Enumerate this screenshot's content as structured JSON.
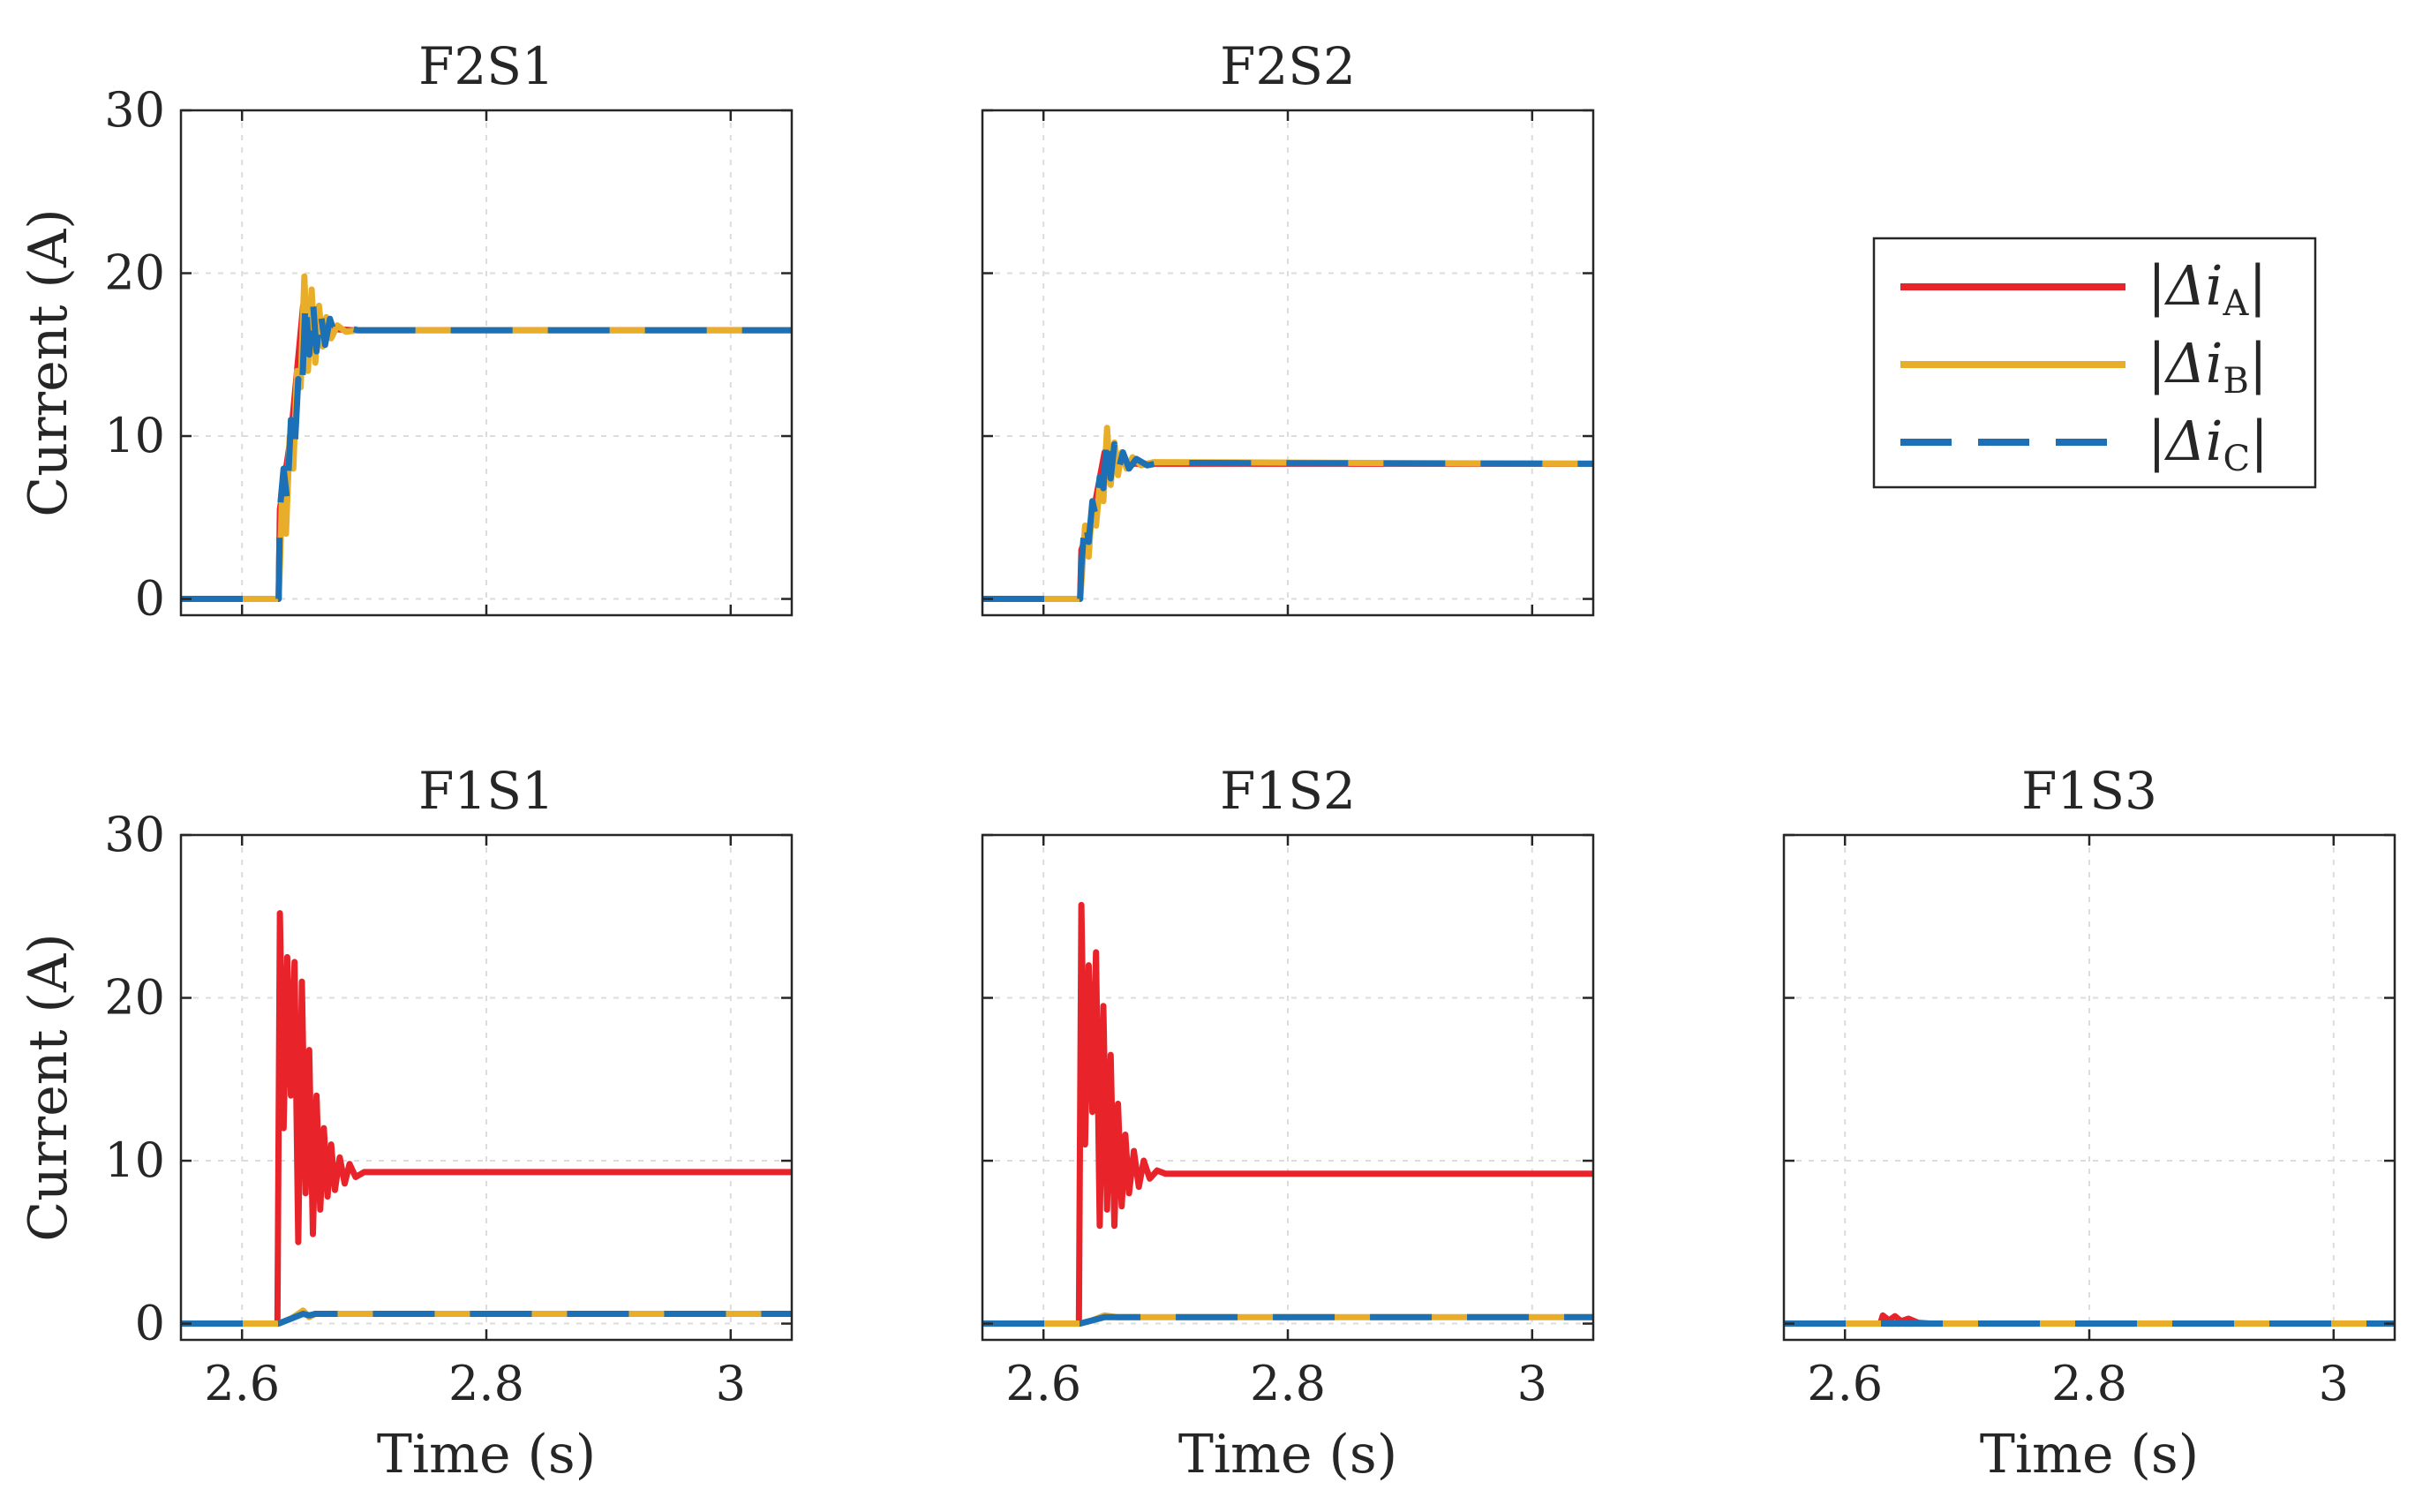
{
  "figure": {
    "legend": {
      "placement": "right of top row",
      "entries": [
        {
          "series": "A",
          "text": "|Δi",
          "sub": "A",
          "close": "|",
          "color": "#e8232a",
          "style": "solid"
        },
        {
          "series": "B",
          "text": "|Δi",
          "sub": "B",
          "close": "|",
          "color": "#e8ae2a",
          "style": "solid"
        },
        {
          "series": "C",
          "text": "|Δi",
          "sub": "C",
          "close": "|",
          "color": "#1b70b6",
          "style": "dashed"
        }
      ]
    }
  },
  "chart_data": [
    {
      "type": "line",
      "title": "F2S1",
      "row": 0,
      "col": 0,
      "xlabel": "",
      "ylabel": "Current (A)",
      "xlim": [
        2.55,
        3.05
      ],
      "ylim": [
        -1,
        30
      ],
      "xticks": [
        2.6,
        2.8,
        3.0
      ],
      "xticklabels": [],
      "yticks": [
        0,
        10,
        20,
        30
      ],
      "yticklabels": [
        "0",
        "10",
        "20",
        "30"
      ],
      "grid": true,
      "series": [
        {
          "name": "|Δi_A|",
          "color": "#e8232a",
          "points": [
            [
              2.55,
              0
            ],
            [
              2.63,
              0
            ],
            [
              2.631,
              5.5
            ],
            [
              2.64,
              10
            ],
            [
              2.65,
              18
            ],
            [
              2.66,
              17
            ],
            [
              2.67,
              16.6
            ],
            [
              2.69,
              16.5
            ],
            [
              3.05,
              16.5
            ]
          ]
        },
        {
          "name": "|Δi_B|",
          "color": "#e8ae2a",
          "points": [
            [
              2.55,
              0
            ],
            [
              2.63,
              0
            ],
            [
              2.631,
              2
            ],
            [
              2.633,
              7
            ],
            [
              2.636,
              4
            ],
            [
              2.639,
              10
            ],
            [
              2.642,
              8
            ],
            [
              2.645,
              14
            ],
            [
              2.648,
              13
            ],
            [
              2.651,
              19.8
            ],
            [
              2.654,
              14
            ],
            [
              2.657,
              19
            ],
            [
              2.66,
              14.5
            ],
            [
              2.663,
              18
            ],
            [
              2.666,
              15.5
            ],
            [
              2.669,
              17.3
            ],
            [
              2.673,
              16
            ],
            [
              2.678,
              16.8
            ],
            [
              2.685,
              16.4
            ],
            [
              2.695,
              16.5
            ],
            [
              3.05,
              16.5
            ]
          ]
        },
        {
          "name": "|Δi_C|",
          "color": "#1b70b6",
          "points": [
            [
              2.55,
              0
            ],
            [
              2.63,
              0
            ],
            [
              2.631,
              5.5
            ],
            [
              2.634,
              8
            ],
            [
              2.637,
              6
            ],
            [
              2.64,
              11
            ],
            [
              2.643,
              9
            ],
            [
              2.646,
              13.5
            ],
            [
              2.649,
              12.5
            ],
            [
              2.652,
              18.5
            ],
            [
              2.655,
              15
            ],
            [
              2.658,
              18.3
            ],
            [
              2.661,
              15.2
            ],
            [
              2.664,
              17.8
            ],
            [
              2.668,
              15.6
            ],
            [
              2.672,
              17.2
            ],
            [
              2.677,
              16
            ],
            [
              2.684,
              16.7
            ],
            [
              2.695,
              16.5
            ],
            [
              3.05,
              16.5
            ]
          ]
        }
      ]
    },
    {
      "type": "line",
      "title": "F2S2",
      "row": 0,
      "col": 1,
      "xlabel": "",
      "ylabel": "",
      "xlim": [
        2.55,
        3.05
      ],
      "ylim": [
        -1,
        30
      ],
      "xticks": [
        2.6,
        2.8,
        3.0
      ],
      "xticklabels": [],
      "yticks": [
        0,
        10,
        20,
        30
      ],
      "yticklabels": [],
      "grid": true,
      "series": [
        {
          "name": "|Δi_A|",
          "color": "#e8232a",
          "points": [
            [
              2.55,
              0
            ],
            [
              2.63,
              0
            ],
            [
              2.631,
              3
            ],
            [
              2.64,
              5
            ],
            [
              2.65,
              9
            ],
            [
              2.66,
              8.5
            ],
            [
              2.67,
              8.3
            ],
            [
              3.05,
              8.3
            ]
          ]
        },
        {
          "name": "|Δi_B|",
          "color": "#e8ae2a",
          "points": [
            [
              2.55,
              0
            ],
            [
              2.63,
              0
            ],
            [
              2.631,
              1
            ],
            [
              2.634,
              4.5
            ],
            [
              2.637,
              2.6
            ],
            [
              2.64,
              6
            ],
            [
              2.643,
              4.5
            ],
            [
              2.646,
              7
            ],
            [
              2.649,
              6
            ],
            [
              2.652,
              10.5
            ],
            [
              2.655,
              7
            ],
            [
              2.658,
              9.6
            ],
            [
              2.661,
              7.6
            ],
            [
              2.664,
              9
            ],
            [
              2.668,
              8
            ],
            [
              2.673,
              8.7
            ],
            [
              2.68,
              8.2
            ],
            [
              2.69,
              8.4
            ],
            [
              3.05,
              8.3
            ]
          ]
        },
        {
          "name": "|Δi_C|",
          "color": "#1b70b6",
          "points": [
            [
              2.55,
              0
            ],
            [
              2.63,
              0
            ],
            [
              2.631,
              2
            ],
            [
              2.634,
              5
            ],
            [
              2.637,
              3.5
            ],
            [
              2.64,
              6
            ],
            [
              2.643,
              5
            ],
            [
              2.646,
              7.5
            ],
            [
              2.649,
              6.8
            ],
            [
              2.652,
              10.2
            ],
            [
              2.655,
              7.4
            ],
            [
              2.658,
              9.5
            ],
            [
              2.661,
              7.8
            ],
            [
              2.665,
              9
            ],
            [
              2.67,
              8
            ],
            [
              2.676,
              8.6
            ],
            [
              2.685,
              8.2
            ],
            [
              2.695,
              8.35
            ],
            [
              3.05,
              8.3
            ]
          ]
        }
      ]
    },
    {
      "type": "line",
      "title": "F1S1",
      "row": 1,
      "col": 0,
      "xlabel": "Time (s)",
      "ylabel": "Current (A)",
      "xlim": [
        2.55,
        3.05
      ],
      "ylim": [
        -1,
        30
      ],
      "xticks": [
        2.6,
        2.8,
        3.0
      ],
      "xticklabels": [
        "2.6",
        "2.8",
        "3"
      ],
      "yticks": [
        0,
        10,
        20,
        30
      ],
      "yticklabels": [
        "0",
        "10",
        "20",
        "30"
      ],
      "grid": true,
      "series": [
        {
          "name": "|Δi_A|",
          "color": "#e8232a",
          "points": [
            [
              2.55,
              0
            ],
            [
              2.629,
              0
            ],
            [
              2.631,
              25.2
            ],
            [
              2.634,
              12
            ],
            [
              2.637,
              22.5
            ],
            [
              2.64,
              14
            ],
            [
              2.643,
              22.2
            ],
            [
              2.646,
              5
            ],
            [
              2.649,
              21
            ],
            [
              2.652,
              8
            ],
            [
              2.655,
              16.8
            ],
            [
              2.658,
              5.5
            ],
            [
              2.661,
              14
            ],
            [
              2.664,
              7
            ],
            [
              2.667,
              12
            ],
            [
              2.67,
              7.8
            ],
            [
              2.673,
              11
            ],
            [
              2.676,
              8.2
            ],
            [
              2.68,
              10.2
            ],
            [
              2.684,
              8.6
            ],
            [
              2.688,
              9.8
            ],
            [
              2.693,
              9
            ],
            [
              2.7,
              9.3
            ],
            [
              3.05,
              9.3
            ]
          ]
        },
        {
          "name": "|Δi_B|",
          "color": "#e8ae2a",
          "points": [
            [
              2.55,
              0
            ],
            [
              2.63,
              0
            ],
            [
              2.64,
              0.3
            ],
            [
              2.65,
              0.8
            ],
            [
              2.655,
              0.4
            ],
            [
              2.66,
              0.6
            ],
            [
              3.05,
              0.6
            ]
          ]
        },
        {
          "name": "|Δi_C|",
          "color": "#1b70b6",
          "points": [
            [
              2.55,
              0
            ],
            [
              2.63,
              0
            ],
            [
              2.64,
              0.3
            ],
            [
              2.65,
              0.6
            ],
            [
              2.655,
              0.5
            ],
            [
              2.66,
              0.6
            ],
            [
              3.05,
              0.6
            ]
          ]
        }
      ]
    },
    {
      "type": "line",
      "title": "F1S2",
      "row": 1,
      "col": 1,
      "xlabel": "Time (s)",
      "ylabel": "",
      "xlim": [
        2.55,
        3.05
      ],
      "ylim": [
        -1,
        30
      ],
      "xticks": [
        2.6,
        2.8,
        3.0
      ],
      "xticklabels": [
        "2.6",
        "2.8",
        "3"
      ],
      "yticks": [
        0,
        10,
        20,
        30
      ],
      "yticklabels": [],
      "grid": true,
      "series": [
        {
          "name": "|Δi_A|",
          "color": "#e8232a",
          "points": [
            [
              2.55,
              0
            ],
            [
              2.629,
              0
            ],
            [
              2.631,
              25.7
            ],
            [
              2.634,
              11
            ],
            [
              2.637,
              22
            ],
            [
              2.64,
              13
            ],
            [
              2.643,
              22.8
            ],
            [
              2.646,
              6
            ],
            [
              2.649,
              19.5
            ],
            [
              2.652,
              7
            ],
            [
              2.655,
              16.5
            ],
            [
              2.658,
              6
            ],
            [
              2.661,
              13.5
            ],
            [
              2.664,
              7.2
            ],
            [
              2.667,
              11.6
            ],
            [
              2.67,
              8
            ],
            [
              2.674,
              10.6
            ],
            [
              2.678,
              8.4
            ],
            [
              2.682,
              10
            ],
            [
              2.687,
              8.9
            ],
            [
              2.693,
              9.4
            ],
            [
              2.7,
              9.2
            ],
            [
              3.05,
              9.2
            ]
          ]
        },
        {
          "name": "|Δi_B|",
          "color": "#e8ae2a",
          "points": [
            [
              2.55,
              0
            ],
            [
              2.63,
              0
            ],
            [
              2.64,
              0.2
            ],
            [
              2.65,
              0.5
            ],
            [
              2.66,
              0.4
            ],
            [
              3.05,
              0.4
            ]
          ]
        },
        {
          "name": "|Δi_C|",
          "color": "#1b70b6",
          "points": [
            [
              2.55,
              0
            ],
            [
              2.63,
              0
            ],
            [
              2.64,
              0.2
            ],
            [
              2.65,
              0.4
            ],
            [
              2.66,
              0.4
            ],
            [
              3.05,
              0.4
            ]
          ]
        }
      ]
    },
    {
      "type": "line",
      "title": "F1S3",
      "row": 1,
      "col": 2,
      "xlabel": "Time (s)",
      "ylabel": "",
      "xlim": [
        2.55,
        3.05
      ],
      "ylim": [
        -1,
        30
      ],
      "xticks": [
        2.6,
        2.8,
        3.0
      ],
      "xticklabels": [
        "2.6",
        "2.8",
        "3"
      ],
      "yticks": [
        0,
        10,
        20,
        30
      ],
      "yticklabels": [],
      "grid": true,
      "series": [
        {
          "name": "|Δi_A|",
          "color": "#e8232a",
          "points": [
            [
              2.55,
              0
            ],
            [
              2.629,
              0
            ],
            [
              2.631,
              0.5
            ],
            [
              2.636,
              0.2
            ],
            [
              2.641,
              0.45
            ],
            [
              2.646,
              0.15
            ],
            [
              2.652,
              0.3
            ],
            [
              2.66,
              0.05
            ],
            [
              2.67,
              0
            ],
            [
              3.05,
              0
            ]
          ]
        },
        {
          "name": "|Δi_B|",
          "color": "#e8ae2a",
          "points": [
            [
              2.55,
              0
            ],
            [
              3.05,
              0
            ]
          ]
        },
        {
          "name": "|Δi_C|",
          "color": "#1b70b6",
          "points": [
            [
              2.55,
              0
            ],
            [
              3.05,
              0
            ]
          ]
        }
      ]
    }
  ]
}
